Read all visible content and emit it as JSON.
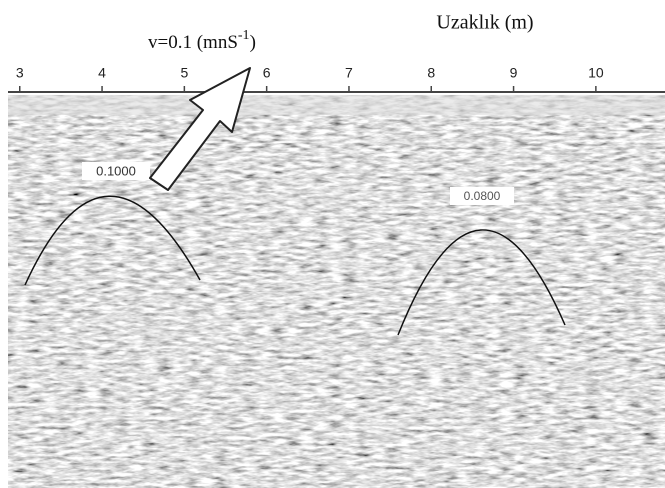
{
  "figure": {
    "axis_label": "Uzaklık (m)",
    "annotation": {
      "text": "v=0.1 (mnS",
      "superscript": "-1",
      "close": ")"
    },
    "xlim": [
      2.76,
      10.84
    ],
    "xticks": [
      3,
      4,
      5,
      6,
      7,
      8,
      9,
      10
    ],
    "hyperbola_labels": [
      "0.1000",
      "0.0800"
    ]
  }
}
